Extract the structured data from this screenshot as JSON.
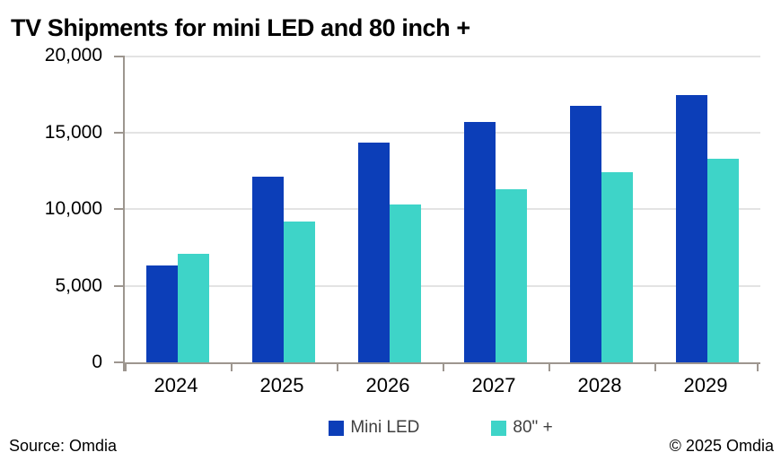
{
  "title": "TV Shipments for mini LED and 80 inch +",
  "footer": {
    "source": "Source: Omdia",
    "copyright": "© 2025 Omdia"
  },
  "colors": {
    "mini_led": "#0c3eb8",
    "eighty_inch_plus": "#3ed4c8",
    "gridline": "#e3e3e3",
    "axis": "#9d968f",
    "legend_text": "#3f3f3f",
    "text": "#000000",
    "background": "#ffffff"
  },
  "chart_data": {
    "type": "bar",
    "title": "TV Shipments for mini LED and 80 inch +",
    "categories": [
      "2024",
      "2025",
      "2026",
      "2027",
      "2028",
      "2029"
    ],
    "series": [
      {
        "name": "Mini LED",
        "color": "#0c3eb8",
        "values": [
          6300,
          12100,
          14300,
          15700,
          16700,
          17400
        ]
      },
      {
        "name": "80\" +",
        "color": "#3ed4c8",
        "values": [
          7100,
          9200,
          10300,
          11300,
          12400,
          13300
        ]
      }
    ],
    "xlabel": "",
    "ylabel": "",
    "ylim": [
      0,
      20000
    ],
    "ytick_interval": 5000,
    "ytick_labels": [
      "0",
      "5,000",
      "10,000",
      "15,000",
      "20,000"
    ],
    "grid": "horizontal",
    "legend_position": "bottom"
  }
}
